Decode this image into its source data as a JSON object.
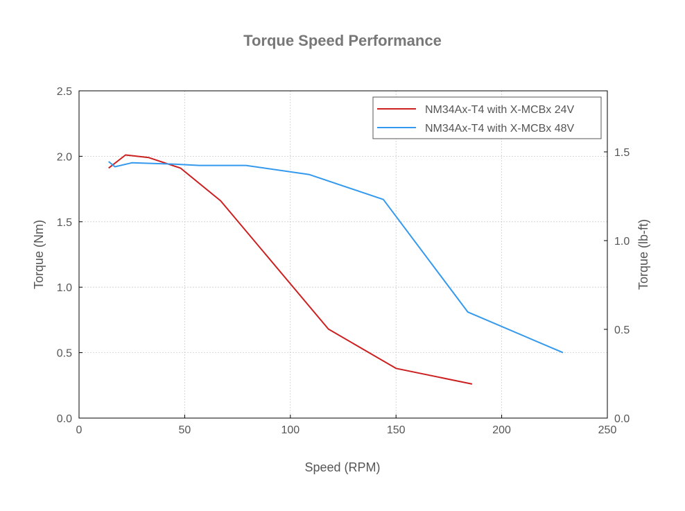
{
  "chart_data": {
    "type": "line",
    "title": "Torque Speed Performance",
    "xlabel": "Speed (RPM)",
    "ylabel": "Torque (Nm)",
    "y2label": "Torque (lb-ft)",
    "xlim": [
      0,
      250
    ],
    "ylim": [
      0,
      2.5
    ],
    "y2lim": [
      0,
      1.8439
    ],
    "xticks": [
      "0",
      "50",
      "100",
      "150",
      "200",
      "250"
    ],
    "yticks": [
      "0.0",
      "0.5",
      "1.0",
      "1.5",
      "2.0",
      "2.5"
    ],
    "y2ticks": [
      "0.0",
      "0.5",
      "1.0",
      "1.5"
    ],
    "grid": true,
    "legend_position": "top-right",
    "series": [
      {
        "name": "NM34Ax-T4 with X-MCBx 24V",
        "color": "#cc1f1f",
        "x": [
          14,
          22,
          33,
          48,
          67,
          118,
          150,
          186
        ],
        "y": [
          1.91,
          2.01,
          1.99,
          1.91,
          1.66,
          0.68,
          0.38,
          0.26
        ]
      },
      {
        "name": "NM34Ax-T4 with X-MCBx 48V",
        "color": "#3399ee",
        "x": [
          14,
          17,
          25,
          45,
          57,
          79,
          109,
          144,
          184,
          229
        ],
        "y": [
          1.96,
          1.92,
          1.95,
          1.94,
          1.93,
          1.93,
          1.86,
          1.67,
          0.81,
          0.5
        ]
      }
    ]
  }
}
